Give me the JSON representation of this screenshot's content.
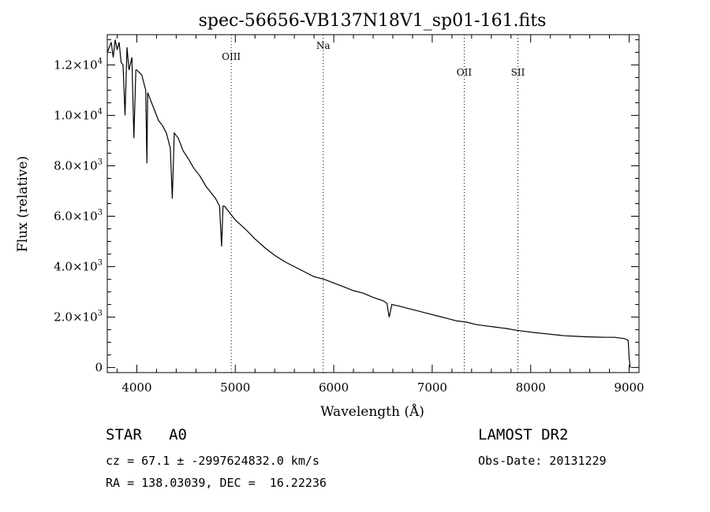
{
  "chart_data": {
    "type": "line",
    "title": "spec-56656-VB137N18V1_sp01-161.fits",
    "xlabel": "Wavelength (Å)",
    "ylabel": "Flux (relative)",
    "xlim": [
      3700,
      9100
    ],
    "ylim": [
      -200,
      13200
    ],
    "xticks": [
      4000,
      5000,
      6000,
      7000,
      8000,
      9000
    ],
    "yticks": [
      {
        "value": 0,
        "label": "0"
      },
      {
        "value": 2000,
        "label": "2.0×10",
        "exp": "3"
      },
      {
        "value": 4000,
        "label": "4.0×10",
        "exp": "3"
      },
      {
        "value": 6000,
        "label": "6.0×10",
        "exp": "3"
      },
      {
        "value": 8000,
        "label": "8.0×10",
        "exp": "3"
      },
      {
        "value": 10000,
        "label": "1.0×10",
        "exp": "4"
      },
      {
        "value": 12000,
        "label": "1.2×10",
        "exp": "4"
      }
    ],
    "grid": false,
    "lines": [
      {
        "label": "OIII",
        "x": 4959
      },
      {
        "label": "Na",
        "x": 5893
      },
      {
        "label": "OII",
        "x": 7325
      },
      {
        "label": "SII",
        "x": 7870
      }
    ],
    "series": [
      {
        "x": [
          3700,
          3720,
          3740,
          3760,
          3780,
          3800,
          3820,
          3840,
          3860,
          3880,
          3900,
          3920,
          3950,
          3970,
          3990,
          4000,
          4050,
          4090,
          4102,
          4110,
          4140,
          4180,
          4220,
          4260,
          4300,
          4320,
          4340,
          4360,
          4380,
          4420,
          4470,
          4520,
          4580,
          4640,
          4700,
          4750,
          4800,
          4840,
          4861,
          4875,
          4890,
          4930,
          5000,
          5100,
          5200,
          5300,
          5400,
          5500,
          5600,
          5700,
          5800,
          5900,
          6000,
          6100,
          6200,
          6300,
          6400,
          6500,
          6540,
          6563,
          6590,
          6650,
          6750,
          6850,
          6950,
          7050,
          7150,
          7250,
          7350,
          7450,
          7550,
          7650,
          7750,
          7850,
          7950,
          8050,
          8150,
          8250,
          8350,
          8450,
          8550,
          8650,
          8750,
          8850,
          8950,
          8990,
          9000,
          9010
        ],
        "y": [
          12500,
          12700,
          12900,
          12300,
          13000,
          12600,
          12900,
          12100,
          12000,
          10000,
          12700,
          11800,
          12300,
          9100,
          11800,
          11800,
          11600,
          11000,
          8100,
          10900,
          10600,
          10200,
          9800,
          9600,
          9300,
          9000,
          8700,
          6700,
          9300,
          9100,
          8600,
          8300,
          7900,
          7600,
          7200,
          6950,
          6700,
          6400,
          4800,
          6400,
          6400,
          6200,
          5850,
          5500,
          5100,
          4750,
          4450,
          4200,
          4000,
          3800,
          3600,
          3500,
          3350,
          3200,
          3050,
          2950,
          2780,
          2650,
          2550,
          2000,
          2500,
          2450,
          2350,
          2250,
          2150,
          2050,
          1950,
          1850,
          1800,
          1700,
          1650,
          1600,
          1550,
          1480,
          1430,
          1380,
          1340,
          1300,
          1260,
          1240,
          1220,
          1210,
          1200,
          1200,
          1150,
          1080,
          400,
          0
        ]
      }
    ]
  },
  "info": {
    "object_class": "STAR",
    "subclass": "A0",
    "survey": "LAMOST DR2",
    "cz_text": "cz = 67.1 ± -2997624832.0 km/s",
    "obs_date_text": "Obs-Date: 20131229",
    "radec_text": "RA = 138.03039, DEC =  16.22236"
  }
}
